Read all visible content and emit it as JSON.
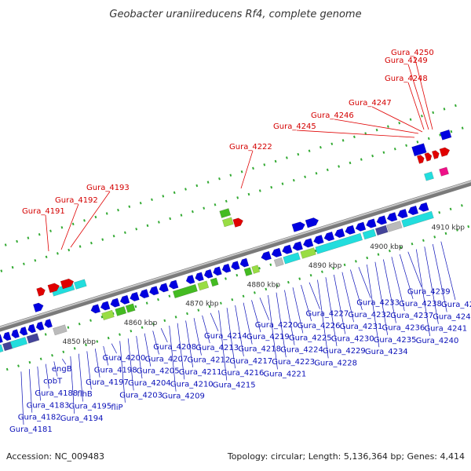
{
  "header": {
    "title": "Geobacter uraniireducens Rf4, complete genome"
  },
  "footer": {
    "accession": "Accession: NC_009483",
    "summary": "Topology: circular; Length: 5,136,364 bp; Genes: 4,414"
  },
  "axis_ticks": [
    "4850 kbp",
    "4860 kbp",
    "4870 kbp",
    "4880 kbp",
    "4890 kbp",
    "4900 kbp",
    "4910 kbp"
  ],
  "colors": {
    "strand_forward": "#0000e0",
    "strand_reverse": "#0000e0",
    "rna_gene": "#e00000",
    "highlight_cyan": "#22dddd",
    "highlight_green": "#44bb22",
    "backbone": "#888888"
  },
  "labels_top": [
    "Gura_4191",
    "Gura_4192",
    "Gura_4193",
    "Gura_4222",
    "Gura_4245",
    "Gura_4246",
    "Gura_4247",
    "Gura_4248",
    "Gura_4249",
    "Gura_4250"
  ],
  "labels_bottom": [
    "Gura_4181",
    "Gura_4182",
    "Gura_4183",
    "Gura_4188",
    "cobT",
    "engB",
    "Gura_4194",
    "Gura_4195",
    "flhB",
    "Gura_4197",
    "Gura_4198",
    "Gura_4200",
    "fliP",
    "Gura_4203",
    "Gura_4204",
    "Gura_4205",
    "Gura_4207",
    "Gura_4208",
    "Gura_4209",
    "Gura_4210",
    "Gura_4211",
    "Gura_4212",
    "Gura_4213",
    "Gura_4214",
    "Gura_4215",
    "Gura_4216",
    "Gura_4217",
    "Gura_4218",
    "Gura_4219",
    "Gura_4220",
    "Gura_4221",
    "Gura_4223",
    "Gura_4224",
    "Gura_4225",
    "Gura_4226",
    "Gura_4227",
    "Gura_4228",
    "Gura_4229",
    "Gura_4230",
    "Gura_4231",
    "Gura_4232",
    "Gura_4233",
    "Gura_4234",
    "Gura_4235",
    "Gura_4236",
    "Gura_4237",
    "Gura_4238",
    "Gura_4239",
    "Gura_4240",
    "Gura_4241",
    "Gura_4242",
    "Gura_4244"
  ]
}
